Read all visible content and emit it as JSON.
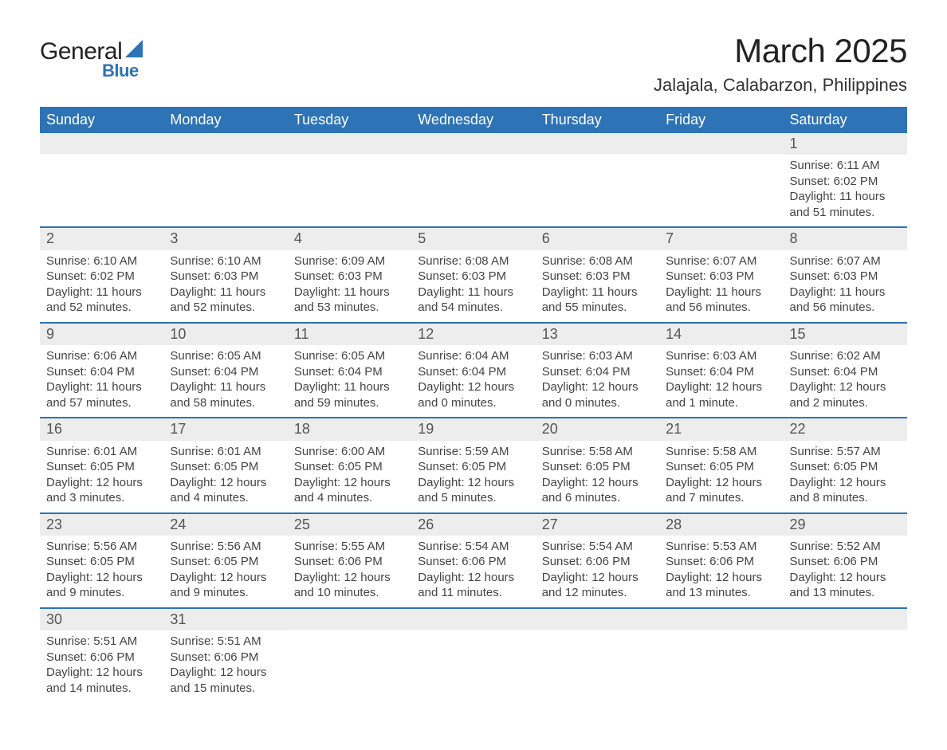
{
  "brand": {
    "name_primary": "General",
    "name_secondary": "Blue",
    "accent_color": "#2d73b6"
  },
  "header": {
    "title": "March 2025",
    "location": "Jalajala, Calabarzon, Philippines"
  },
  "calendar": {
    "day_headers": [
      "Sunday",
      "Monday",
      "Tuesday",
      "Wednesday",
      "Thursday",
      "Friday",
      "Saturday"
    ],
    "header_bg": "#2d73b6",
    "header_text_color": "#ffffff",
    "row_divider_color": "#2d73b6",
    "daynum_bg": "#ededed",
    "text_color": "#444444",
    "weeks": [
      [
        null,
        null,
        null,
        null,
        null,
        null,
        {
          "day": "1",
          "sunrise": "Sunrise: 6:11 AM",
          "sunset": "Sunset: 6:02 PM",
          "daylight": "Daylight: 11 hours and 51 minutes."
        }
      ],
      [
        {
          "day": "2",
          "sunrise": "Sunrise: 6:10 AM",
          "sunset": "Sunset: 6:02 PM",
          "daylight": "Daylight: 11 hours and 52 minutes."
        },
        {
          "day": "3",
          "sunrise": "Sunrise: 6:10 AM",
          "sunset": "Sunset: 6:03 PM",
          "daylight": "Daylight: 11 hours and 52 minutes."
        },
        {
          "day": "4",
          "sunrise": "Sunrise: 6:09 AM",
          "sunset": "Sunset: 6:03 PM",
          "daylight": "Daylight: 11 hours and 53 minutes."
        },
        {
          "day": "5",
          "sunrise": "Sunrise: 6:08 AM",
          "sunset": "Sunset: 6:03 PM",
          "daylight": "Daylight: 11 hours and 54 minutes."
        },
        {
          "day": "6",
          "sunrise": "Sunrise: 6:08 AM",
          "sunset": "Sunset: 6:03 PM",
          "daylight": "Daylight: 11 hours and 55 minutes."
        },
        {
          "day": "7",
          "sunrise": "Sunrise: 6:07 AM",
          "sunset": "Sunset: 6:03 PM",
          "daylight": "Daylight: 11 hours and 56 minutes."
        },
        {
          "day": "8",
          "sunrise": "Sunrise: 6:07 AM",
          "sunset": "Sunset: 6:03 PM",
          "daylight": "Daylight: 11 hours and 56 minutes."
        }
      ],
      [
        {
          "day": "9",
          "sunrise": "Sunrise: 6:06 AM",
          "sunset": "Sunset: 6:04 PM",
          "daylight": "Daylight: 11 hours and 57 minutes."
        },
        {
          "day": "10",
          "sunrise": "Sunrise: 6:05 AM",
          "sunset": "Sunset: 6:04 PM",
          "daylight": "Daylight: 11 hours and 58 minutes."
        },
        {
          "day": "11",
          "sunrise": "Sunrise: 6:05 AM",
          "sunset": "Sunset: 6:04 PM",
          "daylight": "Daylight: 11 hours and 59 minutes."
        },
        {
          "day": "12",
          "sunrise": "Sunrise: 6:04 AM",
          "sunset": "Sunset: 6:04 PM",
          "daylight": "Daylight: 12 hours and 0 minutes."
        },
        {
          "day": "13",
          "sunrise": "Sunrise: 6:03 AM",
          "sunset": "Sunset: 6:04 PM",
          "daylight": "Daylight: 12 hours and 0 minutes."
        },
        {
          "day": "14",
          "sunrise": "Sunrise: 6:03 AM",
          "sunset": "Sunset: 6:04 PM",
          "daylight": "Daylight: 12 hours and 1 minute."
        },
        {
          "day": "15",
          "sunrise": "Sunrise: 6:02 AM",
          "sunset": "Sunset: 6:04 PM",
          "daylight": "Daylight: 12 hours and 2 minutes."
        }
      ],
      [
        {
          "day": "16",
          "sunrise": "Sunrise: 6:01 AM",
          "sunset": "Sunset: 6:05 PM",
          "daylight": "Daylight: 12 hours and 3 minutes."
        },
        {
          "day": "17",
          "sunrise": "Sunrise: 6:01 AM",
          "sunset": "Sunset: 6:05 PM",
          "daylight": "Daylight: 12 hours and 4 minutes."
        },
        {
          "day": "18",
          "sunrise": "Sunrise: 6:00 AM",
          "sunset": "Sunset: 6:05 PM",
          "daylight": "Daylight: 12 hours and 4 minutes."
        },
        {
          "day": "19",
          "sunrise": "Sunrise: 5:59 AM",
          "sunset": "Sunset: 6:05 PM",
          "daylight": "Daylight: 12 hours and 5 minutes."
        },
        {
          "day": "20",
          "sunrise": "Sunrise: 5:58 AM",
          "sunset": "Sunset: 6:05 PM",
          "daylight": "Daylight: 12 hours and 6 minutes."
        },
        {
          "day": "21",
          "sunrise": "Sunrise: 5:58 AM",
          "sunset": "Sunset: 6:05 PM",
          "daylight": "Daylight: 12 hours and 7 minutes."
        },
        {
          "day": "22",
          "sunrise": "Sunrise: 5:57 AM",
          "sunset": "Sunset: 6:05 PM",
          "daylight": "Daylight: 12 hours and 8 minutes."
        }
      ],
      [
        {
          "day": "23",
          "sunrise": "Sunrise: 5:56 AM",
          "sunset": "Sunset: 6:05 PM",
          "daylight": "Daylight: 12 hours and 9 minutes."
        },
        {
          "day": "24",
          "sunrise": "Sunrise: 5:56 AM",
          "sunset": "Sunset: 6:05 PM",
          "daylight": "Daylight: 12 hours and 9 minutes."
        },
        {
          "day": "25",
          "sunrise": "Sunrise: 5:55 AM",
          "sunset": "Sunset: 6:06 PM",
          "daylight": "Daylight: 12 hours and 10 minutes."
        },
        {
          "day": "26",
          "sunrise": "Sunrise: 5:54 AM",
          "sunset": "Sunset: 6:06 PM",
          "daylight": "Daylight: 12 hours and 11 minutes."
        },
        {
          "day": "27",
          "sunrise": "Sunrise: 5:54 AM",
          "sunset": "Sunset: 6:06 PM",
          "daylight": "Daylight: 12 hours and 12 minutes."
        },
        {
          "day": "28",
          "sunrise": "Sunrise: 5:53 AM",
          "sunset": "Sunset: 6:06 PM",
          "daylight": "Daylight: 12 hours and 13 minutes."
        },
        {
          "day": "29",
          "sunrise": "Sunrise: 5:52 AM",
          "sunset": "Sunset: 6:06 PM",
          "daylight": "Daylight: 12 hours and 13 minutes."
        }
      ],
      [
        {
          "day": "30",
          "sunrise": "Sunrise: 5:51 AM",
          "sunset": "Sunset: 6:06 PM",
          "daylight": "Daylight: 12 hours and 14 minutes."
        },
        {
          "day": "31",
          "sunrise": "Sunrise: 5:51 AM",
          "sunset": "Sunset: 6:06 PM",
          "daylight": "Daylight: 12 hours and 15 minutes."
        },
        null,
        null,
        null,
        null,
        null
      ]
    ]
  }
}
